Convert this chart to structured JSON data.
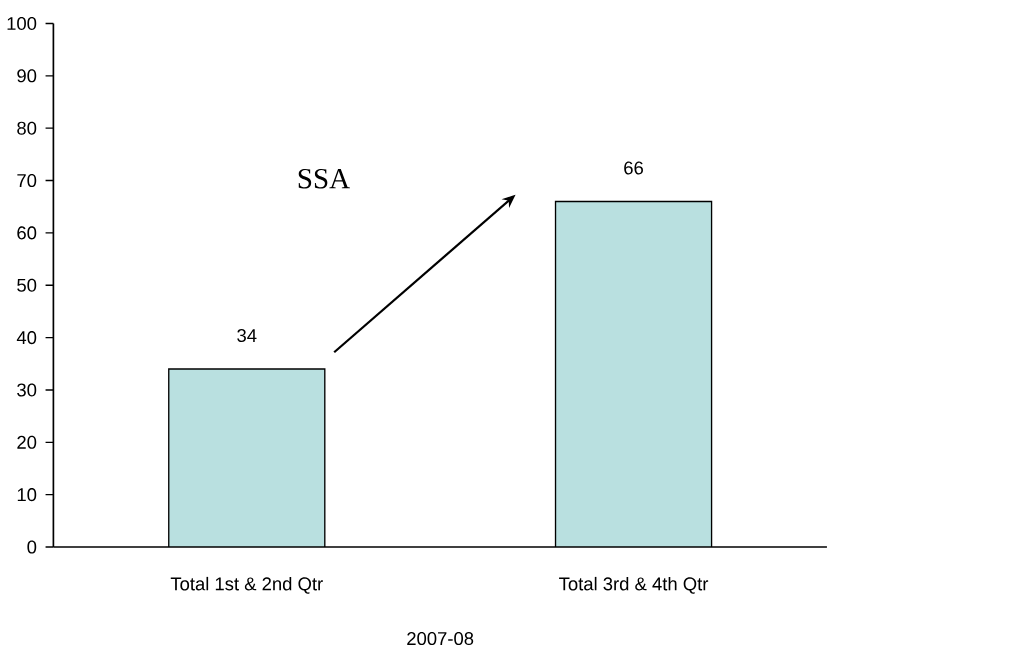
{
  "chart_data": {
    "type": "bar",
    "categories": [
      "Total 1st & 2nd Qtr",
      "Total 3rd & 4th Qtr"
    ],
    "values": [
      34,
      66
    ],
    "color": "#b9e0e0",
    "xlabel": "2007-08",
    "ylim": [
      0,
      100
    ],
    "yticks": [
      0,
      10,
      20,
      30,
      40,
      50,
      60,
      70,
      80,
      90,
      100
    ],
    "data_labels": true,
    "annotations": [
      "SSA"
    ]
  }
}
